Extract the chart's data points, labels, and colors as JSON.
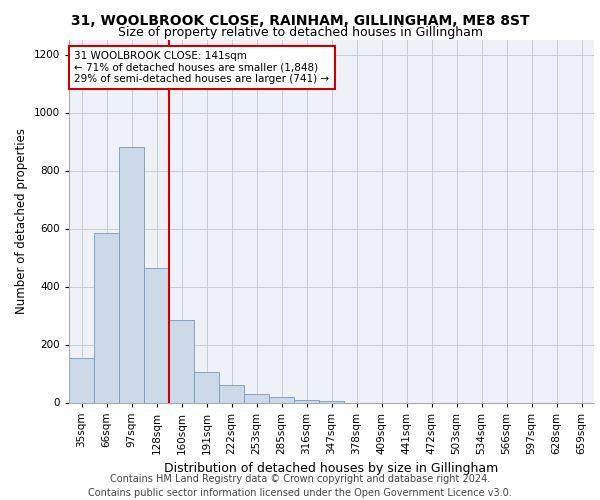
{
  "title1": "31, WOOLBROOK CLOSE, RAINHAM, GILLINGHAM, ME8 8ST",
  "title2": "Size of property relative to detached houses in Gillingham",
  "xlabel": "Distribution of detached houses by size in Gillingham",
  "ylabel": "Number of detached properties",
  "categories": [
    "35sqm",
    "66sqm",
    "97sqm",
    "128sqm",
    "160sqm",
    "191sqm",
    "222sqm",
    "253sqm",
    "285sqm",
    "316sqm",
    "347sqm",
    "378sqm",
    "409sqm",
    "441sqm",
    "472sqm",
    "503sqm",
    "534sqm",
    "566sqm",
    "597sqm",
    "628sqm",
    "659sqm"
  ],
  "values": [
    155,
    585,
    880,
    465,
    285,
    105,
    62,
    28,
    18,
    10,
    5,
    0,
    0,
    0,
    0,
    0,
    0,
    0,
    0,
    0,
    0
  ],
  "bar_color": "#ccd9e8",
  "bar_edge_color": "#7799bb",
  "vline_x_index": 3.5,
  "vline_color": "#cc0000",
  "annotation_text": "31 WOOLBROOK CLOSE: 141sqm\n← 71% of detached houses are smaller (1,848)\n29% of semi-detached houses are larger (741) →",
  "annotation_box_color": "white",
  "annotation_box_edge": "#cc0000",
  "footer_line1": "Contains HM Land Registry data © Crown copyright and database right 2024.",
  "footer_line2": "Contains public sector information licensed under the Open Government Licence v3.0.",
  "ylim": [
    0,
    1250
  ],
  "yticks": [
    0,
    200,
    400,
    600,
    800,
    1000,
    1200
  ],
  "grid_color": "#cccccc",
  "bg_color": "#eef2f8",
  "title1_fontsize": 10,
  "title2_fontsize": 9,
  "xlabel_fontsize": 9,
  "ylabel_fontsize": 8.5,
  "tick_fontsize": 7.5,
  "footer_fontsize": 7
}
